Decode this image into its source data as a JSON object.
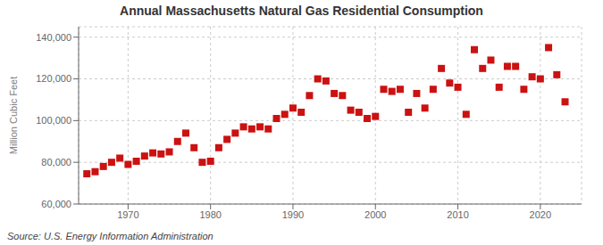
{
  "chart_data": {
    "type": "scatter",
    "title": "Annual Massachusetts Natural Gas Residential Consumption",
    "ylabel": "Million Cubic Feet",
    "source": "Source: U.S. Energy Information Administration",
    "x": [
      1965,
      1966,
      1967,
      1968,
      1969,
      1970,
      1971,
      1972,
      1973,
      1974,
      1975,
      1976,
      1977,
      1978,
      1979,
      1980,
      1981,
      1982,
      1983,
      1984,
      1985,
      1986,
      1987,
      1988,
      1989,
      1990,
      1991,
      1992,
      1993,
      1994,
      1995,
      1996,
      1997,
      1998,
      1999,
      2000,
      2001,
      2002,
      2003,
      2004,
      2005,
      2006,
      2007,
      2008,
      2009,
      2010,
      2011,
      2012,
      2013,
      2014,
      2015,
      2016,
      2017,
      2018,
      2019,
      2020,
      2021,
      2022,
      2023
    ],
    "values": [
      74500,
      75500,
      78000,
      80000,
      82000,
      79000,
      80500,
      83000,
      84500,
      84000,
      85000,
      90000,
      94000,
      87000,
      80000,
      80500,
      87000,
      91000,
      94000,
      97000,
      96000,
      97000,
      96000,
      101000,
      103000,
      106000,
      104000,
      112000,
      120000,
      119000,
      113000,
      112000,
      105000,
      104000,
      101000,
      102000,
      115000,
      114000,
      115000,
      104000,
      113000,
      106000,
      115000,
      125000,
      118000,
      116000,
      103000,
      134000,
      125000,
      129000,
      116000,
      126000,
      126000,
      115000,
      121000,
      120000,
      135000,
      122000,
      109000
    ],
    "color": "#cc1111",
    "marker": "square",
    "xlim": [
      1964,
      2025
    ],
    "xticks": [
      1970,
      1980,
      1990,
      2000,
      2010,
      2020
    ],
    "ylim": [
      60000,
      145000
    ],
    "yticks": [
      {
        "value": 60000,
        "label": "60,000"
      },
      {
        "value": 80000,
        "label": "80,000"
      },
      {
        "value": 100000,
        "label": "100,000"
      },
      {
        "value": 120000,
        "label": "120,000"
      },
      {
        "value": 140000,
        "label": "140,000"
      }
    ],
    "grid": true
  }
}
